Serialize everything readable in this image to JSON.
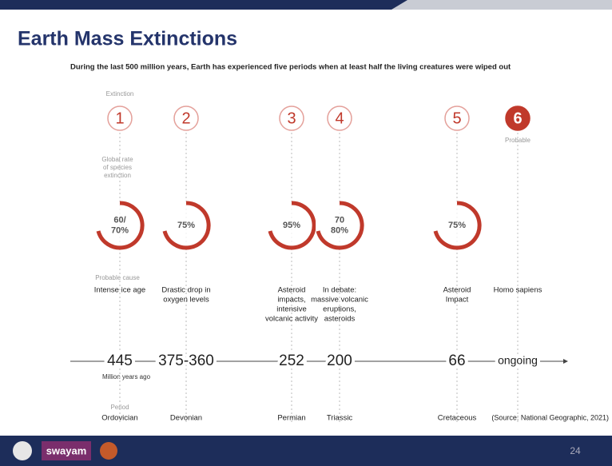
{
  "header": {
    "title": "Earth Mass Extinctions",
    "subtitle": "During the last 500 million years, Earth has experienced five periods when at least half the living creatures were wiped out"
  },
  "labels": {
    "extinction": "Extinction",
    "global_rate": [
      "Global rate",
      "of species",
      "extinction"
    ],
    "probable_cause": "Probable cause",
    "million_years_ago": "Million years ago",
    "period": "Period"
  },
  "events": [
    {
      "number": "1",
      "rate": [
        "60/",
        "70%"
      ],
      "cause": [
        "Intense ice age"
      ],
      "date": "445",
      "period": "Ordovician"
    },
    {
      "number": "2",
      "rate": [
        "75%"
      ],
      "cause": [
        "Drastic drop in",
        "oxygen levels"
      ],
      "date": "375-360",
      "period": "Devonian"
    },
    {
      "number": "3",
      "rate": [
        "95%"
      ],
      "cause": [
        "Asteroid",
        "impacts,",
        "intensive",
        "volcanic activity"
      ],
      "date": "252",
      "period": "Permian"
    },
    {
      "number": "4",
      "rate": [
        "70",
        "80%"
      ],
      "cause": [
        "In debate:",
        "massive volcanic",
        "eruptions,",
        "asteroids"
      ],
      "date": "200",
      "period": "Triassic"
    },
    {
      "number": "5",
      "rate": [
        "75%"
      ],
      "cause": [
        "Asteroid",
        "Impact"
      ],
      "date": "66",
      "period": "Cretaceous"
    },
    {
      "number": "6",
      "status": "Probable",
      "cause": [
        "Homo sapiens"
      ],
      "date": "ongoing"
    }
  ],
  "source": "(Source: National Geographic, 2021)",
  "footer": {
    "logo": "swayam",
    "page": "24"
  }
}
